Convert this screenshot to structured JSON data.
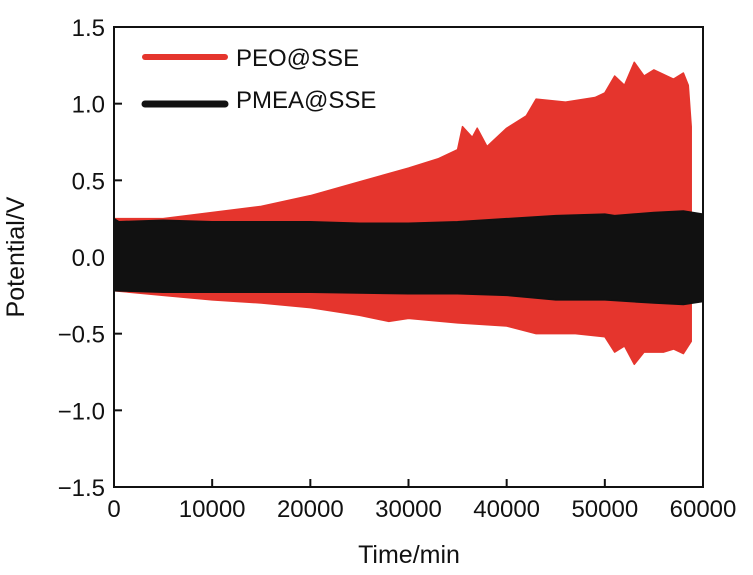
{
  "chart_data": {
    "type": "area",
    "title": "",
    "xlabel": "Time/min",
    "ylabel": "Potential/V",
    "xlim": [
      0,
      60000
    ],
    "ylim": [
      -1.5,
      1.5
    ],
    "xticks": [
      0,
      10000,
      20000,
      30000,
      40000,
      50000,
      60000
    ],
    "xtick_labels": [
      "0",
      "10000",
      "20000",
      "30000",
      "40000",
      "50000",
      "60000"
    ],
    "yticks": [
      1.5,
      1.0,
      0.5,
      0.0,
      -0.5,
      -1.0,
      -1.5
    ],
    "ytick_labels": [
      "1.5",
      "1.0",
      "0.5",
      "0.0",
      "−0.5",
      "−1.0",
      "−1.5"
    ],
    "grid": false,
    "legend": "top-left",
    "series": [
      {
        "name": "PEO@SSE",
        "color": "#e5352d",
        "upper": [
          [
            0,
            0.25
          ],
          [
            5000,
            0.25
          ],
          [
            10000,
            0.29
          ],
          [
            15000,
            0.33
          ],
          [
            20000,
            0.4
          ],
          [
            25000,
            0.49
          ],
          [
            30000,
            0.58
          ],
          [
            33000,
            0.64
          ],
          [
            35000,
            0.7
          ],
          [
            35500,
            0.85
          ],
          [
            36500,
            0.78
          ],
          [
            37000,
            0.84
          ],
          [
            38000,
            0.72
          ],
          [
            40000,
            0.84
          ],
          [
            42000,
            0.92
          ],
          [
            43000,
            1.03
          ],
          [
            46000,
            1.01
          ],
          [
            49000,
            1.04
          ],
          [
            50000,
            1.07
          ],
          [
            51000,
            1.18
          ],
          [
            52000,
            1.12
          ],
          [
            53000,
            1.27
          ],
          [
            54000,
            1.18
          ],
          [
            55000,
            1.22
          ],
          [
            57000,
            1.16
          ],
          [
            58000,
            1.2
          ],
          [
            58500,
            1.12
          ],
          [
            58800,
            0.85
          ]
        ],
        "lower": [
          [
            0,
            -0.22
          ],
          [
            5000,
            -0.25
          ],
          [
            10000,
            -0.28
          ],
          [
            15000,
            -0.3
          ],
          [
            20000,
            -0.33
          ],
          [
            25000,
            -0.38
          ],
          [
            28000,
            -0.42
          ],
          [
            30000,
            -0.4
          ],
          [
            35000,
            -0.43
          ],
          [
            40000,
            -0.45
          ],
          [
            43000,
            -0.5
          ],
          [
            47000,
            -0.5
          ],
          [
            50000,
            -0.52
          ],
          [
            51000,
            -0.62
          ],
          [
            52000,
            -0.58
          ],
          [
            53000,
            -0.7
          ],
          [
            54000,
            -0.62
          ],
          [
            56000,
            -0.62
          ],
          [
            57000,
            -0.6
          ],
          [
            58000,
            -0.63
          ],
          [
            58800,
            -0.55
          ]
        ]
      },
      {
        "name": "PMEA@SSE",
        "color": "#111111",
        "upper": [
          [
            0,
            0.25
          ],
          [
            500,
            0.23
          ],
          [
            5000,
            0.24
          ],
          [
            10000,
            0.23
          ],
          [
            20000,
            0.23
          ],
          [
            25000,
            0.22
          ],
          [
            30000,
            0.22
          ],
          [
            35000,
            0.23
          ],
          [
            40000,
            0.25
          ],
          [
            45000,
            0.27
          ],
          [
            50000,
            0.28
          ],
          [
            51000,
            0.27
          ],
          [
            55000,
            0.29
          ],
          [
            58000,
            0.3
          ],
          [
            60000,
            0.28
          ]
        ],
        "lower": [
          [
            0,
            -0.22
          ],
          [
            5000,
            -0.23
          ],
          [
            10000,
            -0.23
          ],
          [
            20000,
            -0.23
          ],
          [
            30000,
            -0.24
          ],
          [
            35000,
            -0.24
          ],
          [
            40000,
            -0.25
          ],
          [
            45000,
            -0.28
          ],
          [
            50000,
            -0.28
          ],
          [
            55000,
            -0.3
          ],
          [
            58000,
            -0.31
          ],
          [
            60000,
            -0.29
          ]
        ]
      }
    ]
  }
}
